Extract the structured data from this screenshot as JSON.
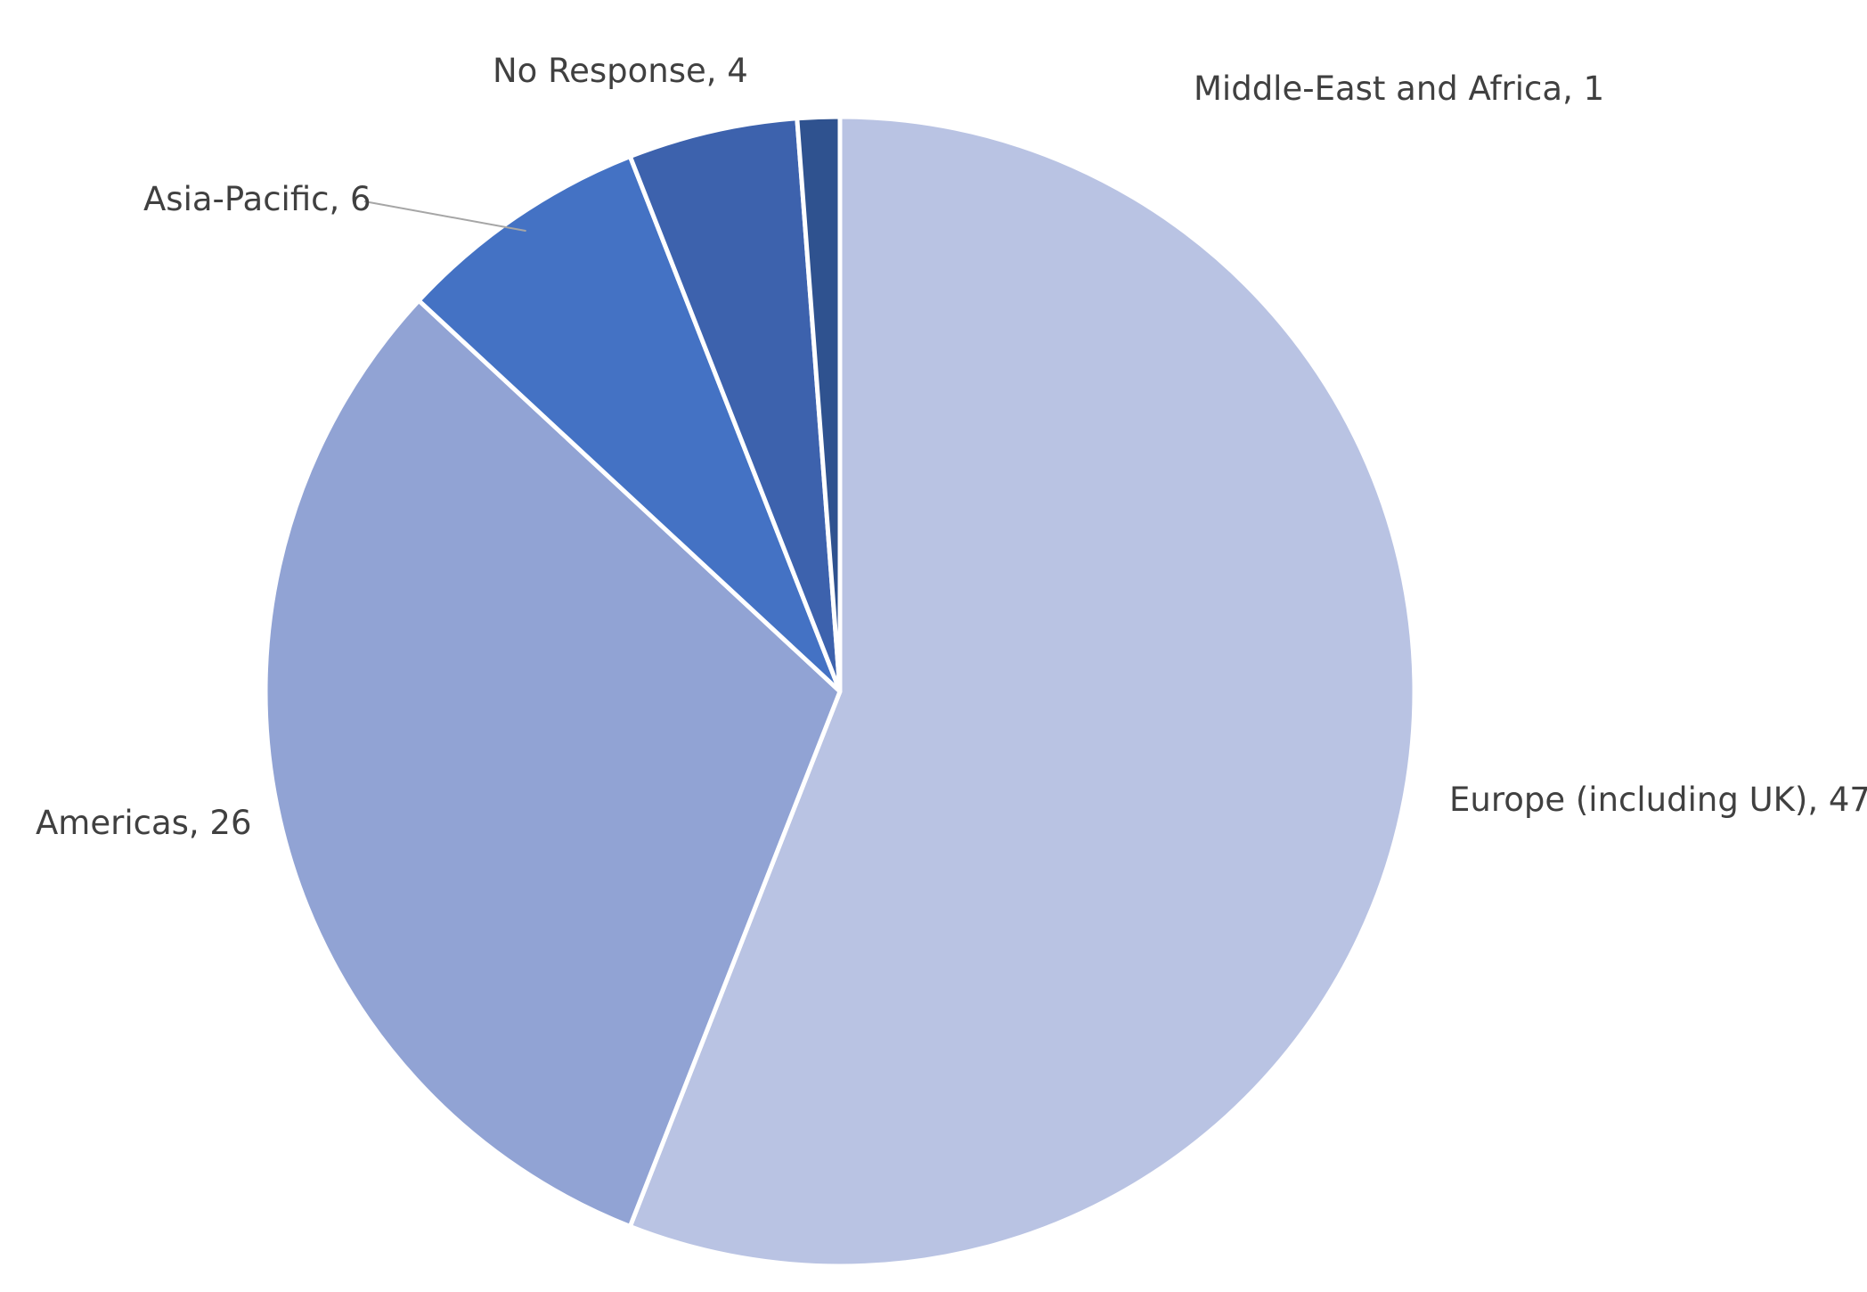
{
  "chart_data": {
    "type": "pie",
    "title": "",
    "start_angle_deg": 0,
    "direction": "clockwise",
    "slices": [
      {
        "label": "Europe (including UK)",
        "value": 47,
        "color": "#b9c3e3",
        "data_label": "Europe (including UK), 47"
      },
      {
        "label": "Americas",
        "value": 26,
        "color": "#91a3d4",
        "data_label": "Americas, 26"
      },
      {
        "label": "Asia-Pacific",
        "value": 6,
        "color": "#4472c4",
        "data_label": "Asia-Pacific, 6"
      },
      {
        "label": "No Response",
        "value": 4,
        "color": "#3d62ad",
        "data_label": "No Response, 4"
      },
      {
        "label": "Middle-East and Africa",
        "value": 1,
        "color": "#2f528f",
        "data_label": "Middle-East and Africa, 1"
      }
    ],
    "legend": "none",
    "data_labels": "outside"
  }
}
